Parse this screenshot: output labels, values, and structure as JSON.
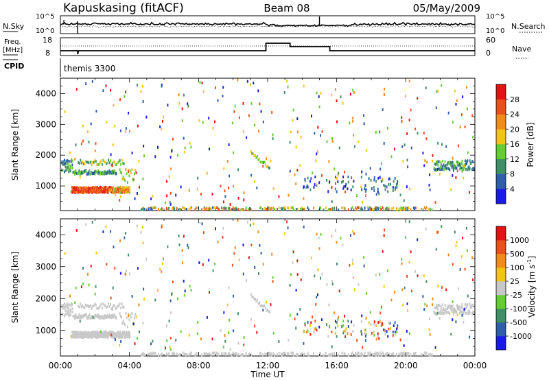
{
  "header": {
    "station": "Kapuskasing (fitACF)",
    "beam": "Beam 08",
    "date": "05/May/2009"
  },
  "panels": {
    "nsky_label": "N.Sky",
    "nsearch_label": "N.Search",
    "freq_label": "Freq.",
    "freq_unit": "[MHz]",
    "nave_label": "Nave",
    "cpid_label": "CPID",
    "cpid_value": "themis 3300",
    "noise_left_ticks": [
      "10^5",
      "10^0"
    ],
    "noise_right_ticks": [
      "10^5",
      "10^0"
    ],
    "freq_left_ticks": [
      "18",
      "8"
    ],
    "nave_right_ticks": [
      "60",
      "0"
    ]
  },
  "chart_data": [
    {
      "type": "scatter",
      "name": "power",
      "ylabel": "Slant Range [km]",
      "yticks": [
        "1000",
        "2000",
        "3000",
        "4000"
      ],
      "ylim": [
        200,
        4500
      ],
      "xlim": [
        0,
        24
      ],
      "colorbar": {
        "label": "Power [dB]",
        "ticks": [
          "4",
          "8",
          "12",
          "16",
          "20",
          "24",
          "28"
        ],
        "colors": [
          "#1a1ae6",
          "#2e5fa8",
          "#3f8f66",
          "#66cc33",
          "#f0c419",
          "#f08c1e",
          "#e8501e",
          "#e01414"
        ]
      }
    },
    {
      "type": "scatter",
      "name": "velocity",
      "ylabel": "Slant Range [km]",
      "yticks": [
        "1000",
        "2000",
        "3000",
        "4000"
      ],
      "ylim": [
        200,
        4500
      ],
      "xlim": [
        0,
        24
      ],
      "colorbar": {
        "label": "Velocity [m s^-1]",
        "ticks": [
          "1000",
          "500",
          "100",
          "25",
          "-25",
          "-100",
          "-500",
          "-1000"
        ],
        "colors": [
          "#1a1ae6",
          "#2e5fa8",
          "#3f8f66",
          "#66cc33",
          "#c8c8c8",
          "#f0c419",
          "#f08c1e",
          "#e8501e",
          "#e01414"
        ]
      }
    }
  ],
  "xaxis": {
    "label": "Time UT",
    "ticks": [
      "00:00",
      "04:00",
      "08:00",
      "12:00",
      "16:00",
      "20:00",
      "00:00"
    ]
  }
}
